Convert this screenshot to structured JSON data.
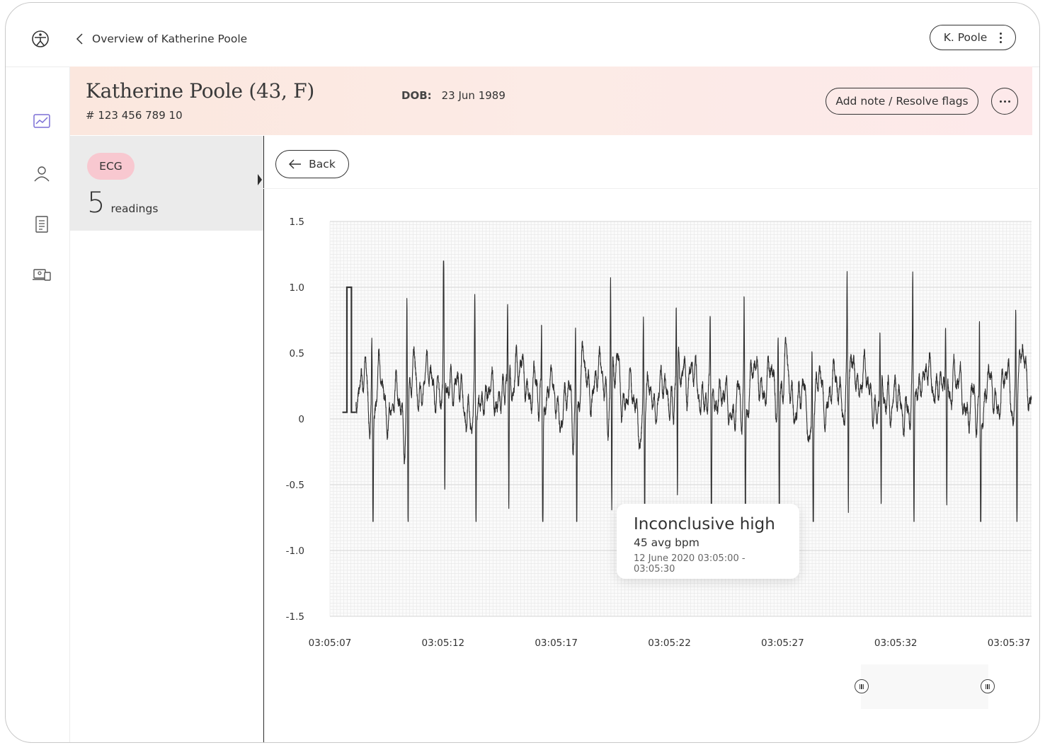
{
  "topbar": {
    "breadcrumb": "Overview of Katherine Poole",
    "user_label": "K. Poole"
  },
  "nav": {
    "icons": [
      "chart-icon",
      "user-icon",
      "document-icon",
      "devices-icon"
    ]
  },
  "patient": {
    "name": "Katherine Poole (43, F)",
    "id": "# 123 456 789 10",
    "dob_label": "DOB:",
    "dob_value": "23 Jun 1989",
    "note_button": "Add note / Resolve flags"
  },
  "readings": {
    "type": "ECG",
    "count": "5",
    "count_label": "readings"
  },
  "main": {
    "back_label": "Back"
  },
  "tooltip": {
    "title": "Inconclusive high",
    "bpm": "45 avg bpm",
    "date": "12 June 2020 03:05:00 - 03:05:30"
  },
  "chart_data": {
    "type": "line",
    "y_ticks": [
      "1.5",
      "1.0",
      "0.5",
      "0",
      "-0.5",
      "-1.0",
      "-1.5"
    ],
    "x_ticks": [
      "03:05:07",
      "03:05:12",
      "03:05:17",
      "03:05:22",
      "03:05:27",
      "03:05:32",
      "03:05:37"
    ],
    "ylim": [
      -1.5,
      1.5
    ],
    "xlim": [
      0,
      31
    ],
    "grid": true,
    "beat_times": [
      1.85,
      3.4,
      5.02,
      6.4,
      7.85,
      9.35,
      10.85,
      12.4,
      13.85,
      15.3,
      16.8,
      18.3,
      19.8,
      21.3,
      22.85,
      24.3,
      25.75,
      27.2,
      28.7,
      30.3
    ],
    "beat_peaks": [
      0.5,
      0.85,
      1.15,
      0.75,
      0.75,
      0.65,
      0.65,
      0.95,
      0.65,
      0.65,
      0.65,
      0.75,
      0.55,
      0.65,
      0.75,
      0.65,
      0.8,
      0.55,
      0.85,
      0.65
    ],
    "beat_troughs": [
      -0.72,
      -0.72,
      -0.72,
      -0.72,
      -0.72,
      -0.72,
      -0.72,
      -0.72,
      -0.72,
      -0.72,
      -0.72,
      -0.72,
      -0.72,
      -0.72,
      -0.72,
      -0.72,
      -0.72,
      -0.72,
      -0.72,
      -0.72
    ],
    "baseline": 0.2
  }
}
